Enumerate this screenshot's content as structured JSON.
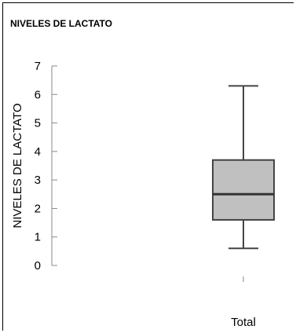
{
  "chart_data": {
    "type": "box",
    "title": "NIVELES DE LACTATO",
    "ylabel": "NIVELES DE  LACTATO",
    "xlabel": "",
    "ylim": [
      0,
      7
    ],
    "yticks": [
      "0",
      "1",
      "2",
      "3",
      "4",
      "5",
      "6",
      "7"
    ],
    "categories": [
      "Total"
    ],
    "boxes": [
      {
        "category": "Total",
        "min": 0.6,
        "q1": 1.6,
        "median": 2.5,
        "q3": 3.7,
        "max": 6.3
      }
    ],
    "grid": false,
    "colors": {
      "box_fill": "#c0c0c0",
      "line": "#444444"
    }
  }
}
